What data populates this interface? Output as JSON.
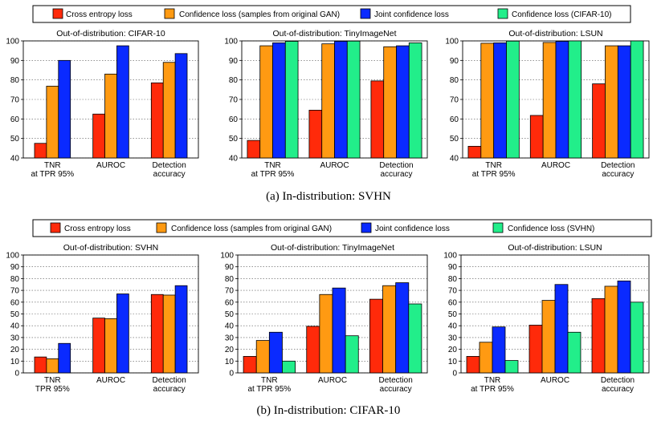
{
  "colors": {
    "Cross entropy loss": "#ff2a0a",
    "Confidence loss (samples from original GAN)": "#ff9a12",
    "Joint confidence loss": "#0a2aff",
    "Confidence loss (CIFAR-10)": "#22ee8a",
    "Confidence loss (SVHN)": "#22ee8a"
  },
  "figure": {
    "panel_a": {
      "caption": "(a)  In-distribution: SVHN",
      "legend": [
        "Cross entropy loss",
        "Confidence loss (samples from original GAN)",
        "Joint confidence loss",
        "Confidence loss (CIFAR-10)"
      ]
    },
    "panel_b": {
      "caption": "(b)  In-distribution: CIFAR-10",
      "legend": [
        "Cross entropy loss",
        "Confidence loss (samples from original GAN)",
        "Joint confidence loss",
        "Confidence loss (SVHN)"
      ]
    }
  },
  "chart_data": [
    {
      "type": "bar",
      "title": "Out-of-distribution: CIFAR-10",
      "categories": [
        [
          "TNR",
          "at TPR 95%"
        ],
        [
          "AUROC"
        ],
        [
          "Detection",
          "accuracy"
        ]
      ],
      "ylim": [
        40,
        100
      ],
      "yticks": [
        40,
        50,
        60,
        70,
        80,
        90,
        100
      ],
      "series": [
        {
          "name": "Cross entropy loss",
          "values": [
            47.5,
            62.5,
            78.5
          ]
        },
        {
          "name": "Confidence loss (samples from original GAN)",
          "values": [
            76.8,
            83,
            89
          ]
        },
        {
          "name": "Joint confidence loss",
          "values": [
            90,
            97.5,
            93.5
          ]
        }
      ]
    },
    {
      "type": "bar",
      "title": "Out-of-distribution: TinyImageNet",
      "categories": [
        [
          "TNR",
          "at TPR 95%"
        ],
        [
          "AUROC"
        ],
        [
          "Detection",
          "accuracy"
        ]
      ],
      "ylim": [
        40,
        100
      ],
      "yticks": [
        40,
        50,
        60,
        70,
        80,
        90,
        100
      ],
      "series": [
        {
          "name": "Cross entropy loss",
          "values": [
            49,
            64.5,
            79.5
          ]
        },
        {
          "name": "Confidence loss (samples from original GAN)",
          "values": [
            97.5,
            98.5,
            97
          ]
        },
        {
          "name": "Joint confidence loss",
          "values": [
            99,
            99.8,
            97.5
          ]
        },
        {
          "name": "Confidence loss (CIFAR-10)",
          "values": [
            99.8,
            99.9,
            99
          ]
        }
      ]
    },
    {
      "type": "bar",
      "title": "Out-of-distribution: LSUN",
      "categories": [
        [
          "TNR",
          "at TPR 95%"
        ],
        [
          "AUROC"
        ],
        [
          "Detection",
          "accuracy"
        ]
      ],
      "ylim": [
        40,
        100
      ],
      "yticks": [
        40,
        50,
        60,
        70,
        80,
        90,
        100
      ],
      "series": [
        {
          "name": "Cross entropy loss",
          "values": [
            46,
            61.8,
            78
          ]
        },
        {
          "name": "Confidence loss (samples from original GAN)",
          "values": [
            98.8,
            99.2,
            97.5
          ]
        },
        {
          "name": "Joint confidence loss",
          "values": [
            99,
            99.8,
            97.5
          ]
        },
        {
          "name": "Confidence loss (CIFAR-10)",
          "values": [
            99.9,
            100,
            100
          ]
        }
      ]
    },
    {
      "type": "bar",
      "title": "Out-of-distribution: SVHN",
      "categories": [
        [
          "TNR",
          "TPR 95%"
        ],
        [
          "AUROC"
        ],
        [
          "Detection",
          "accuracy"
        ]
      ],
      "ylim": [
        0,
        100
      ],
      "yticks": [
        0,
        10,
        20,
        30,
        40,
        50,
        60,
        70,
        80,
        90,
        100
      ],
      "series": [
        {
          "name": "Cross entropy loss",
          "values": [
            13.5,
            46.5,
            66.5
          ]
        },
        {
          "name": "Confidence loss (samples from original GAN)",
          "values": [
            12,
            46,
            66
          ]
        },
        {
          "name": "Joint confidence loss",
          "values": [
            25,
            67,
            74
          ]
        }
      ]
    },
    {
      "type": "bar",
      "title": "Out-of-distribution: TinyImageNet",
      "categories": [
        [
          "TNR",
          "at TPR 95%"
        ],
        [
          "AUROC"
        ],
        [
          "Detection",
          "accuracy"
        ]
      ],
      "ylim": [
        0,
        100
      ],
      "yticks": [
        0,
        10,
        20,
        30,
        40,
        50,
        60,
        70,
        80,
        90,
        100
      ],
      "series": [
        {
          "name": "Cross entropy loss",
          "values": [
            14,
            39.5,
            62.5
          ]
        },
        {
          "name": "Confidence loss (samples from original GAN)",
          "values": [
            27.5,
            66.5,
            74
          ]
        },
        {
          "name": "Joint confidence loss",
          "values": [
            34.5,
            72,
            76.5
          ]
        },
        {
          "name": "Confidence loss (SVHN)",
          "values": [
            10,
            31.5,
            58.5
          ]
        }
      ]
    },
    {
      "type": "bar",
      "title": "Out-of-distribution: LSUN",
      "categories": [
        [
          "TNR",
          "at TPR 95%"
        ],
        [
          "AUROC"
        ],
        [
          "Detection",
          "accuracy"
        ]
      ],
      "ylim": [
        0,
        100
      ],
      "yticks": [
        0,
        10,
        20,
        30,
        40,
        50,
        60,
        70,
        80,
        90,
        100
      ],
      "series": [
        {
          "name": "Cross entropy loss",
          "values": [
            14,
            40.5,
            63
          ]
        },
        {
          "name": "Confidence loss (samples from original GAN)",
          "values": [
            26,
            61.5,
            73.5
          ]
        },
        {
          "name": "Joint confidence loss",
          "values": [
            39,
            75,
            78
          ]
        },
        {
          "name": "Confidence loss (SVHN)",
          "values": [
            10.5,
            34.5,
            60
          ]
        }
      ]
    }
  ]
}
